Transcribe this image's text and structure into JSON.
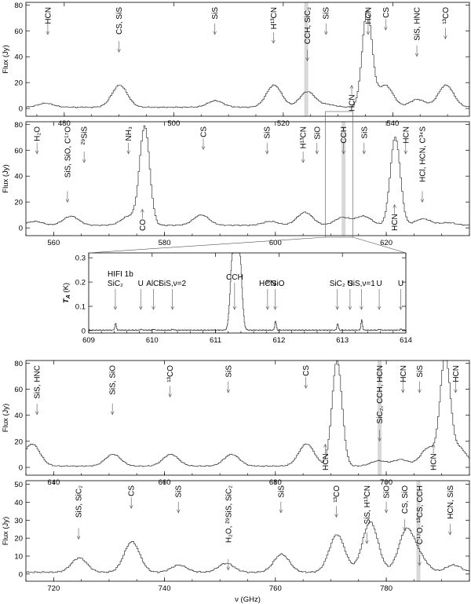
{
  "chart_data": [
    {
      "id": "p1",
      "type": "line",
      "ylabel": "Flux (Jy)",
      "xlim": [
        473,
        554
      ],
      "ylim": [
        -6,
        82
      ],
      "xticks": [
        480,
        500,
        520,
        540
      ],
      "yticks": [
        0,
        20,
        40,
        60,
        80
      ],
      "bands": [
        524.2
      ],
      "baseline": 1,
      "peaks": [
        [
          476.5,
          4
        ],
        [
          490.0,
          18
        ],
        [
          507.5,
          6
        ],
        [
          518.2,
          18
        ],
        [
          524.3,
          13
        ],
        [
          528.0,
          3
        ],
        [
          535.2,
          75
        ],
        [
          538.5,
          18
        ],
        [
          544.4,
          7
        ],
        [
          549.6,
          18
        ]
      ],
      "annotations": [
        {
          "x": 477,
          "text": "HCN",
          "dir": "down"
        },
        {
          "x": 490,
          "text": "CS, SiS",
          "dir": "down"
        },
        {
          "x": 507.5,
          "text": "SiS",
          "dir": "down"
        },
        {
          "x": 518.2,
          "text": "H¹³CN",
          "dir": "down"
        },
        {
          "x": 524.4,
          "text": "CCH, SiC₂",
          "dir": "down"
        },
        {
          "x": 527.8,
          "text": "SiS",
          "dir": "down"
        },
        {
          "x": 532.5,
          "text": "HCN",
          "dir": "up"
        },
        {
          "x": 535.5,
          "text": "HCN",
          "dir": "down"
        },
        {
          "x": 538.7,
          "text": "CS",
          "dir": "down"
        },
        {
          "x": 544.4,
          "text": "SiS, HNC",
          "dir": "down"
        },
        {
          "x": 549.6,
          "text": "¹³CO",
          "dir": "down"
        }
      ]
    },
    {
      "id": "p2",
      "type": "line",
      "ylabel": "Flux (Jy)",
      "xlim": [
        555,
        635
      ],
      "ylim": [
        -6,
        82
      ],
      "xticks": [
        560,
        580,
        600,
        620
      ],
      "yticks": [
        0,
        20,
        40,
        60,
        80
      ],
      "bands": [
        612.3
      ],
      "baseline": 2,
      "peaks": [
        [
          556.5,
          5
        ],
        [
          563.0,
          9
        ],
        [
          573.5,
          9
        ],
        [
          576.3,
          78
        ],
        [
          586.5,
          10
        ],
        [
          599.0,
          5
        ],
        [
          605.2,
          12
        ],
        [
          612.0,
          8
        ],
        [
          615.8,
          9
        ],
        [
          621.5,
          70
        ],
        [
          626.5,
          7
        ],
        [
          631.0,
          4
        ]
      ],
      "annotations": [
        {
          "x": 557,
          "text": "H₂O",
          "dir": "down"
        },
        {
          "x": 562.5,
          "text": "SiS, SiO, C¹⁷O",
          "dir": "down"
        },
        {
          "x": 565.5,
          "text": "²⁹SiS",
          "dir": "down"
        },
        {
          "x": 573.5,
          "text": "NH₃",
          "dir": "down"
        },
        {
          "x": 576,
          "text": "CO",
          "dir": "up"
        },
        {
          "x": 587,
          "text": "CS",
          "dir": "down"
        },
        {
          "x": 598.5,
          "text": "SiS",
          "dir": "down"
        },
        {
          "x": 605,
          "text": "H¹³CN",
          "dir": "down"
        },
        {
          "x": 607.5,
          "text": "SiO",
          "dir": "down"
        },
        {
          "x": 612.3,
          "text": "CCH",
          "dir": "down"
        },
        {
          "x": 616,
          "text": "SiS",
          "dir": "down"
        },
        {
          "x": 621.5,
          "text": "HCN",
          "dir": "up"
        },
        {
          "x": 623.5,
          "text": "HCN",
          "dir": "down"
        },
        {
          "x": 626.5,
          "text": "HCl, HCN, C³⁴S",
          "dir": "down"
        }
      ]
    },
    {
      "id": "p3",
      "type": "line",
      "title": "HIFI 1b",
      "ylabel": "T_A (K)",
      "xlim": [
        609,
        614
      ],
      "ylim": [
        -0.01,
        0.32
      ],
      "xticks": [
        609,
        610,
        611,
        612,
        613,
        614
      ],
      "yticks": [
        0.0,
        0.1,
        0.2,
        0.3
      ],
      "baseline": 0.002,
      "peaks": [
        [
          609.42,
          0.03
        ],
        [
          609.82,
          0.006
        ],
        [
          610.02,
          0.006
        ],
        [
          610.32,
          0.006
        ],
        [
          611.26,
          0.27
        ],
        [
          611.32,
          0.21
        ],
        [
          611.38,
          0.27
        ],
        [
          611.94,
          0.04
        ],
        [
          612.92,
          0.03
        ],
        [
          613.3,
          0.045
        ],
        [
          613.58,
          0.006
        ],
        [
          613.92,
          0.006
        ]
      ],
      "annotations": [
        {
          "x": 609.42,
          "text": "SiC₂",
          "dir": "down"
        },
        {
          "x": 609.82,
          "text": "U",
          "dir": "down"
        },
        {
          "x": 610.02,
          "text": "AlCl",
          "dir": "down"
        },
        {
          "x": 610.32,
          "text": "SiS,ν=2",
          "dir": "down"
        },
        {
          "x": 611.3,
          "text": "CCH",
          "dir": "down"
        },
        {
          "x": 611.94,
          "text": "³⁰SiO",
          "dir": "down"
        },
        {
          "x": 611.82,
          "text": "HCN",
          "dir": "down"
        },
        {
          "x": 612.92,
          "text": "SiC₂",
          "dir": "down"
        },
        {
          "x": 613.12,
          "text": "U",
          "dir": "down"
        },
        {
          "x": 613.3,
          "text": "SiS,ν=1",
          "dir": "down"
        },
        {
          "x": 613.58,
          "text": "U",
          "dir": "down"
        },
        {
          "x": 613.92,
          "text": "U",
          "dir": "down"
        }
      ]
    },
    {
      "id": "p4",
      "type": "line",
      "ylabel": "Flux (Jy)",
      "xlim": [
        635,
        715
      ],
      "ylim": [
        -6,
        82
      ],
      "xticks": [
        640,
        660,
        680,
        700
      ],
      "yticks": [
        0,
        20,
        40,
        60,
        80
      ],
      "bands": [
        698.8
      ],
      "baseline": 1,
      "peaks": [
        [
          636.0,
          18
        ],
        [
          650.6,
          10
        ],
        [
          661.0,
          10
        ],
        [
          672.0,
          10
        ],
        [
          685.5,
          18
        ],
        [
          691.0,
          82
        ],
        [
          698.5,
          5
        ],
        [
          702.5,
          6
        ],
        [
          707.5,
          15
        ],
        [
          710.5,
          82
        ],
        [
          713.0,
          15
        ]
      ],
      "annotations": [
        {
          "x": 637,
          "text": "SiS, HNC",
          "dir": "down"
        },
        {
          "x": 650.6,
          "text": "SiS, SiO",
          "dir": "down"
        },
        {
          "x": 661,
          "text": "¹³CO",
          "dir": "down"
        },
        {
          "x": 671.5,
          "text": "SiS",
          "dir": "down"
        },
        {
          "x": 685.5,
          "text": "CS",
          "dir": "down"
        },
        {
          "x": 689,
          "text": "HCN",
          "dir": "up"
        },
        {
          "x": 698.8,
          "text": "SiC₂, CCH, HCN",
          "dir": "down"
        },
        {
          "x": 703,
          "text": "HCN",
          "dir": "down"
        },
        {
          "x": 706,
          "text": "SiS",
          "dir": "down"
        },
        {
          "x": 708.5,
          "text": "HCN",
          "dir": "up"
        },
        {
          "x": 712.5,
          "text": "HCN",
          "dir": "down"
        }
      ]
    },
    {
      "id": "p5",
      "type": "line",
      "ylabel": "Flux (Jy)",
      "xlabel": "ν (GHz)",
      "xlim": [
        715,
        795
      ],
      "ylim": [
        -4,
        52
      ],
      "xticks": [
        720,
        740,
        760,
        780
      ],
      "yticks": [
        0,
        10,
        20,
        30,
        40,
        50
      ],
      "bands": [
        785.8
      ],
      "baseline": 1,
      "peaks": [
        [
          724.5,
          9
        ],
        [
          734.0,
          18
        ],
        [
          742.5,
          5
        ],
        [
          751.0,
          6
        ],
        [
          761.0,
          11
        ],
        [
          771.0,
          22
        ],
        [
          777.0,
          29
        ],
        [
          783.5,
          24
        ],
        [
          786.0,
          8
        ],
        [
          792.0,
          5
        ]
      ],
      "annotations": [
        {
          "x": 724.5,
          "text": "SiS, SiC₂",
          "dir": "down"
        },
        {
          "x": 734,
          "text": "CS",
          "dir": "down"
        },
        {
          "x": 742.5,
          "text": "SiS",
          "dir": "down"
        },
        {
          "x": 751.5,
          "text": "H₂O, ²⁹SiS, SiC₂",
          "dir": "down"
        },
        {
          "x": 761,
          "text": "SiS",
          "dir": "down"
        },
        {
          "x": 771,
          "text": "¹³CO",
          "dir": "down"
        },
        {
          "x": 776.5,
          "text": "SiS, H¹³CN",
          "dir": "down"
        },
        {
          "x": 780,
          "text": "SiO",
          "dir": "down"
        },
        {
          "x": 783.3,
          "text": "CS, SiO",
          "dir": "down"
        },
        {
          "x": 786,
          "text": "C¹⁷O, ¹³CS, CCH",
          "dir": "down"
        },
        {
          "x": 791.5,
          "text": "HCN, SiS",
          "dir": "down"
        }
      ]
    }
  ]
}
